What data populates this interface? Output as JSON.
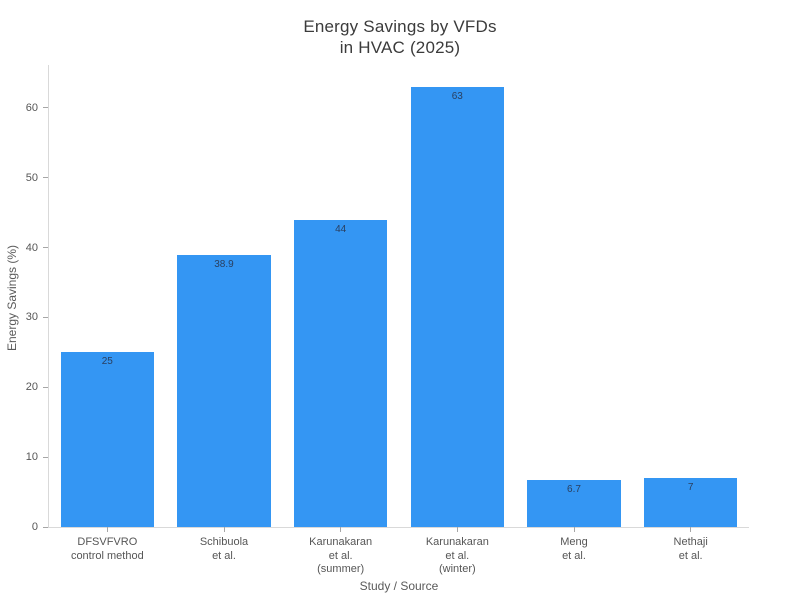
{
  "chart_data": {
    "type": "bar",
    "title": "Energy Savings by VFDs\nin HVAC (2025)",
    "title_lines": [
      "Energy Savings by VFDs",
      "in HVAC (2025)"
    ],
    "xlabel": "Study / Source",
    "ylabel": "Energy Savings (%)",
    "categories": [
      "DFSVFVRO control method",
      "Schibuola et al.",
      "Karunakaran et al. (summer)",
      "Karunakaran et al. (winter)",
      "Meng et al.",
      "Nethaji et al."
    ],
    "category_lines": [
      [
        "DFSVFVRO",
        "control method"
      ],
      [
        "Schibuola",
        "et al."
      ],
      [
        "Karunakaran",
        "et al.",
        "(summer)"
      ],
      [
        "Karunakaran",
        "et al.",
        "(winter)"
      ],
      [
        "Meng",
        "et al."
      ],
      [
        "Nethaji",
        "et al."
      ]
    ],
    "values": [
      25,
      38.9,
      44,
      63,
      6.7,
      7
    ],
    "bar_labels": [
      "25",
      "38.9",
      "44",
      "63",
      "6.7",
      "7"
    ],
    "yticks": [
      0,
      10,
      20,
      30,
      40,
      50,
      60
    ],
    "ylim": [
      0,
      66.15
    ],
    "grid": false,
    "legend": false,
    "colors": {
      "bar_fill": "#3496f3",
      "bar_value_label": "#2a3f5f",
      "axis_line": "#d9d9d9",
      "tick_mark": "#a6a6a6",
      "tick_label": "#565656",
      "axis_title": "#5a5a5a",
      "title": "#3b3b3b",
      "background": "#ffffff"
    }
  }
}
